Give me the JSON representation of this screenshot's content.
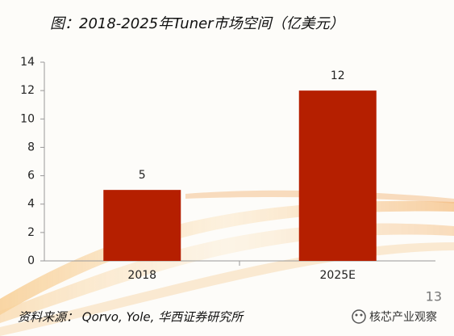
{
  "chart_data": {
    "type": "bar",
    "title": "图：2018-2025年Tuner市场空间（亿美元）",
    "categories": [
      "2018",
      "2025E"
    ],
    "values": [
      5,
      12
    ],
    "color": "#b51f00",
    "ylim": [
      0,
      14
    ],
    "yticks": [
      0,
      2,
      4,
      6,
      8,
      10,
      12,
      14
    ],
    "data_labels": true
  },
  "source": "资料来源： Qorvo, Yole, 华西证券研究所",
  "page_number": "13",
  "watermark": "核芯产业观察"
}
